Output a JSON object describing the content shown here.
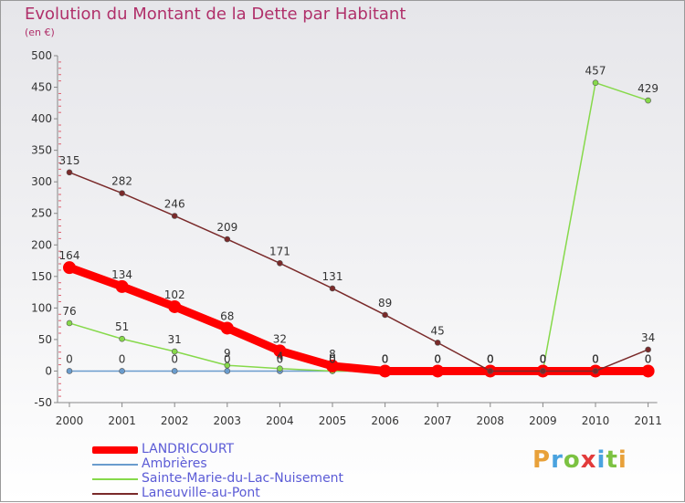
{
  "chart_data": {
    "type": "line",
    "title": "Evolution du Montant de la Dette par Habitant",
    "subtitle": "(en €)",
    "xlabel": "",
    "ylabel": "",
    "categories": [
      "2000",
      "2001",
      "2002",
      "2003",
      "2004",
      "2005",
      "2006",
      "2007",
      "2008",
      "2009",
      "2010",
      "2011"
    ],
    "ylim": [
      -50,
      500
    ],
    "yticks": [
      -50,
      0,
      50,
      100,
      150,
      200,
      250,
      300,
      350,
      400,
      450,
      500
    ],
    "grid": false,
    "legend_position": "bottom-left",
    "series": [
      {
        "name": "LANDRICOURT",
        "color": "#ff0000",
        "values": [
          164,
          134,
          102,
          68,
          32,
          8,
          0,
          0,
          0,
          0,
          0,
          0
        ],
        "labels": [
          "164",
          "134",
          "102",
          "68",
          "32",
          "8",
          "0",
          "0",
          "0",
          "0",
          "0",
          "0"
        ]
      },
      {
        "name": "Ambrières",
        "color": "#6a9ccd",
        "values": [
          0,
          0,
          0,
          0,
          0,
          0,
          0,
          0,
          0,
          0,
          0,
          0
        ],
        "labels": [
          "0",
          "0",
          "0",
          "0",
          "0",
          "0",
          "0",
          "0",
          "0",
          "0",
          "0",
          "0"
        ]
      },
      {
        "name": "Sainte-Marie-du-Lac-Nuisement",
        "color": "#86d94a",
        "values": [
          76,
          51,
          31,
          9,
          4,
          0,
          0,
          0,
          0,
          0,
          457,
          429
        ],
        "labels": [
          "76",
          "51",
          "31",
          "9",
          "4",
          "0",
          "0",
          "0",
          "0",
          "0",
          "457",
          "429"
        ]
      },
      {
        "name": "Laneuville-au-Pont",
        "color": "#7a2a2a",
        "values": [
          315,
          282,
          246,
          209,
          171,
          131,
          89,
          45,
          0,
          0,
          0,
          34
        ],
        "labels": [
          "315",
          "282",
          "246",
          "209",
          "171",
          "131",
          "89",
          "45",
          "0",
          "0",
          "0",
          "34"
        ]
      }
    ]
  },
  "legend": {
    "items": [
      {
        "label": "LANDRICOURT"
      },
      {
        "label": "Ambrières"
      },
      {
        "label": "Sainte-Marie-du-Lac-Nuisement"
      },
      {
        "label": "Laneuville-au-Pont"
      }
    ]
  },
  "logo": {
    "letters": [
      "P",
      "r",
      "o",
      "x",
      "i",
      "t",
      "i"
    ],
    "colors": [
      "#e8a13a",
      "#4aa3df",
      "#7cc242",
      "#e23b3b",
      "#4aa3df",
      "#7cc242",
      "#e8a13a"
    ]
  }
}
